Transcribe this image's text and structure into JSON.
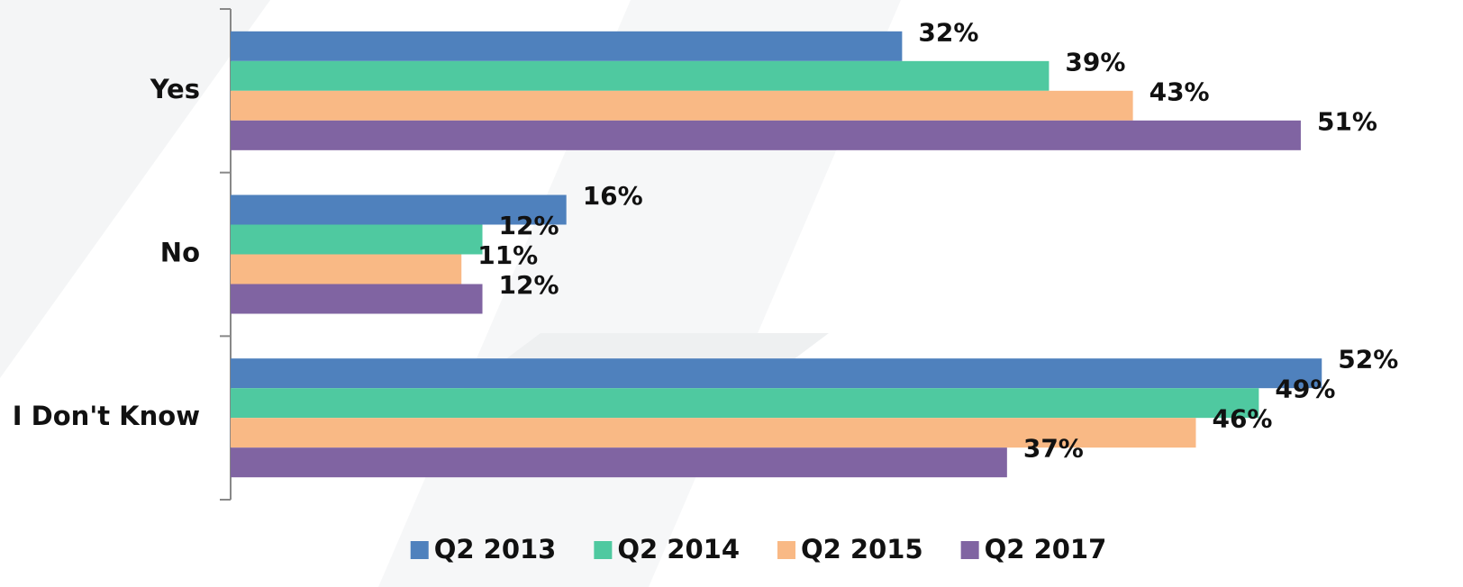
{
  "chart_data": {
    "type": "hbar",
    "categories": [
      "Yes",
      "No",
      "I Don't Know"
    ],
    "series": [
      {
        "name": "Q2 2013",
        "color": "#4f81bd",
        "values": [
          32,
          16,
          52
        ],
        "value_labels": [
          "32%",
          "16%",
          "52%"
        ]
      },
      {
        "name": "Q2 2014",
        "color": "#4fc9a0",
        "values": [
          39,
          12,
          49
        ],
        "value_labels": [
          "39%",
          "12%",
          "49%"
        ]
      },
      {
        "name": "Q2 2015",
        "color": "#f9b985",
        "values": [
          43,
          11,
          46
        ],
        "value_labels": [
          "43%",
          "11%",
          "46%"
        ]
      },
      {
        "name": "Q2 2017",
        "color": "#8064a2",
        "values": [
          51,
          12,
          37
        ],
        "value_labels": [
          "51%",
          "12%",
          "37%"
        ]
      }
    ],
    "xlim": [
      0,
      58
    ],
    "legend": "bottom"
  }
}
